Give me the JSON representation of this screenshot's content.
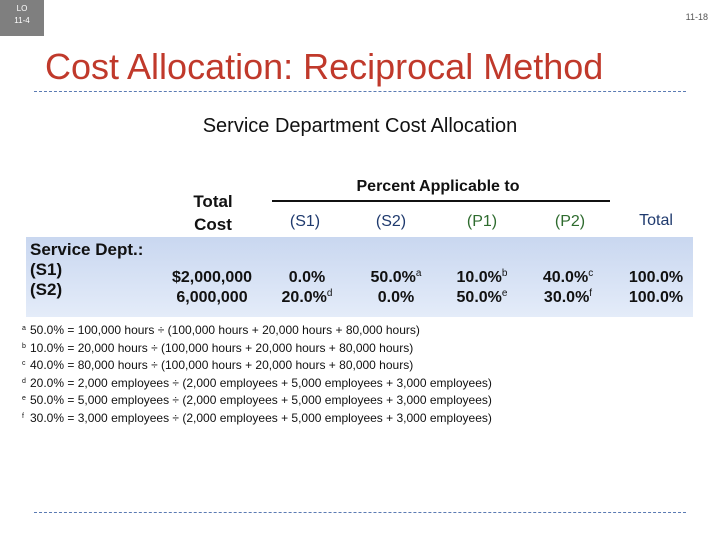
{
  "badge": {
    "line1": "LO",
    "line2": "11-4"
  },
  "slide_number": "11-18",
  "title": "Cost Allocation: Reciprocal Method",
  "subtitle": "Service Department Cost Allocation",
  "table": {
    "total_cost_header": {
      "line1": "Total",
      "line2": "Cost"
    },
    "percent_header": "Percent Applicable to",
    "column_headers": {
      "s1": "(S1)",
      "s2": "(S2)",
      "p1": "(P1)",
      "p2": "(P2)",
      "total": "Total"
    },
    "row_group_label": "Service Dept.:",
    "rows": [
      {
        "label": "(S1)",
        "total_cost": "$2,000,000",
        "s1": "0.0%",
        "s1_sup": "",
        "s2": "50.0%",
        "s2_sup": "a",
        "p1": "10.0%",
        "p1_sup": "b",
        "p2": "40.0%",
        "p2_sup": "c",
        "total": "100.0%"
      },
      {
        "label": "(S2)",
        "total_cost": "6,000,000",
        "s1": "20.0%",
        "s1_sup": "d",
        "s2": "0.0%",
        "s2_sup": "",
        "p1": "50.0%",
        "p1_sup": "e",
        "p2": "30.0%",
        "p2_sup": "f",
        "total": "100.0%"
      }
    ]
  },
  "footnotes": [
    {
      "mark": "a",
      "text": "50.0% = 100,000 hours ÷ (100,000 hours + 20,000 hours + 80,000 hours)"
    },
    {
      "mark": "b",
      "text": "10.0% = 20,000 hours ÷ (100,000 hours + 20,000 hours + 80,000 hours)"
    },
    {
      "mark": "c",
      "text": "40.0% = 80,000 hours ÷ (100,000 hours + 20,000 hours + 80,000 hours)"
    },
    {
      "mark": "d",
      "text": "20.0% = 2,000 employees ÷ (2,000 employees + 5,000 employees + 3,000 employees)"
    },
    {
      "mark": "e",
      "text": "50.0% = 5,000 employees ÷ (2,000 employees + 5,000 employees + 3,000 employees)"
    },
    {
      "mark": "f",
      "text": "30.0% = 3,000 employees ÷ (2,000 employees + 5,000 employees + 3,000 employees)"
    }
  ],
  "colors": {
    "title": "#c0392b",
    "rule": "#5b7bb3",
    "band_top": "#c9d7f0",
    "band_bottom": "#e4ecf9",
    "s_columns": "#1f3a6e",
    "p_columns": "#2e6b2e",
    "badge": "#7f7f7f"
  }
}
